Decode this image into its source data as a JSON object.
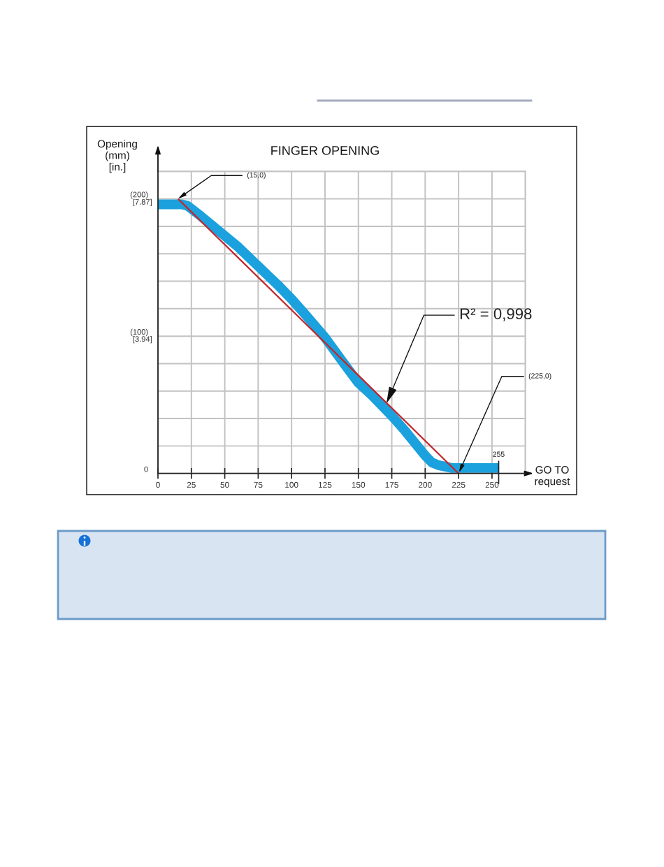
{
  "chart_data": {
    "type": "line",
    "title": "FINGER OPENING",
    "xlabel": "GO TO\nrequest",
    "ylabel": "Opening\n(mm)\n[in.]",
    "xlim": [
      0,
      275
    ],
    "xticks": [
      0,
      25,
      50,
      75,
      100,
      125,
      150,
      175,
      200,
      225,
      250,
      {
        "value": 275,
        "label": null
      }
    ],
    "ylim": [
      0,
      220
    ],
    "yticks": [
      0,
      {
        "value": 20,
        "label": null
      },
      {
        "value": 40,
        "label": null
      },
      {
        "value": 60,
        "label": null
      },
      {
        "value": 80,
        "label": null
      },
      {
        "value": 100,
        "label": "(100)"
      },
      {
        "value": 120,
        "label": null
      },
      {
        "value": 140,
        "label": null
      },
      {
        "value": 160,
        "label": null
      },
      {
        "value": 180,
        "label": null
      },
      {
        "value": 200,
        "label": "(200)"
      },
      {
        "value": 220,
        "label": null
      }
    ],
    "y2lim": [
      0,
      8.66
    ],
    "y2ticks": [
      {
        "value": 3.94,
        "label": "[3.94]"
      },
      {
        "value": 7.87,
        "label": "[7.87]"
      }
    ],
    "grid": true,
    "series": [
      {
        "color": "#1ba1dd",
        "x": [
          0,
          10,
          18,
          22,
          26,
          30,
          40,
          50,
          60,
          75,
          90,
          100,
          110,
          125,
          140,
          150,
          160,
          175,
          185,
          195,
          200,
          205,
          210,
          215,
          220,
          230,
          255
        ],
        "values": [
          196,
          196,
          196,
          195,
          192,
          189,
          181,
          173,
          165,
          151,
          137,
          127,
          116,
          99,
          79,
          66,
          57,
          42,
          31,
          19,
          13,
          8,
          6,
          5,
          4,
          4,
          4
        ]
      },
      {
        "type": "line",
        "color": "#c1272d",
        "x": [
          15,
          225
        ],
        "values": [
          200,
          0
        ]
      }
    ],
    "annotations": [
      {
        "text": "(15,0)",
        "x": 15,
        "y": 200
      },
      {
        "text": "R² = 0,998",
        "x": 171,
        "y": 51
      },
      {
        "text": "(225,0)",
        "x": 225,
        "y": 0
      },
      {
        "text": "255",
        "x": 255,
        "y": 4
      }
    ]
  }
}
